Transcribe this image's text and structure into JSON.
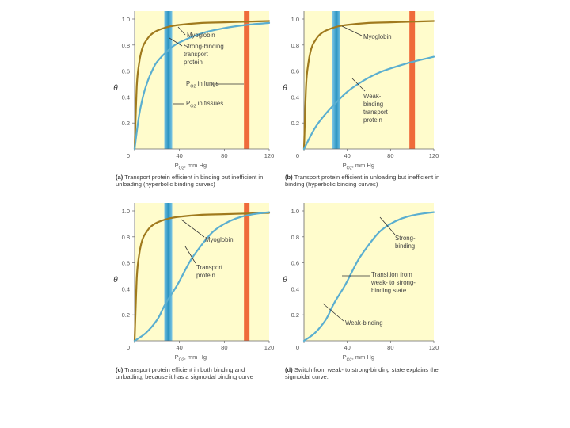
{
  "colors": {
    "background": "#fffccc",
    "myoglobin": "#a07a1e",
    "transport": "#5aaed0",
    "lungs_band": "#ef6a3a",
    "tissues_band": "#2a93c0",
    "axis": "#666666"
  },
  "chart_data": [
    {
      "id": "a",
      "type": "line",
      "xlim": [
        0,
        120
      ],
      "ylim": [
        0,
        1.0
      ],
      "xticks": [
        0,
        40,
        80,
        120
      ],
      "yticks": [
        0.2,
        0.4,
        0.6,
        0.8,
        1.0
      ],
      "xtick_labels": [
        "0",
        "40",
        "80",
        "120"
      ],
      "ytick_labels": [
        "0.2",
        "0.4",
        "0.6",
        "0.8",
        "1.0"
      ],
      "ylabel": "θ",
      "xlabel": "P_O2, mm Hg",
      "bands": [
        {
          "x": 30,
          "kind": "tissues"
        },
        {
          "x": 100,
          "kind": "lungs"
        }
      ],
      "series": [
        {
          "name": "Myoglobin",
          "color_key": "myoglobin",
          "x": [
            0,
            2,
            4,
            6,
            8,
            10,
            14,
            20,
            30,
            40,
            60,
            80,
            100,
            120
          ],
          "y": [
            0,
            0.49,
            0.66,
            0.75,
            0.8,
            0.83,
            0.875,
            0.91,
            0.94,
            0.955,
            0.97,
            0.975,
            0.98,
            0.985
          ]
        },
        {
          "name": "Strong-binding transport protein",
          "color_key": "transport",
          "x": [
            0,
            4,
            8,
            12,
            16,
            20,
            30,
            40,
            60,
            80,
            100,
            120
          ],
          "y": [
            0,
            0.26,
            0.42,
            0.53,
            0.61,
            0.67,
            0.76,
            0.82,
            0.89,
            0.93,
            0.955,
            0.97
          ]
        }
      ],
      "annotations": [
        "Myoglobin",
        "Strong-binding transport protein",
        "P_O2 in lungs",
        "P_O2 in tissues"
      ],
      "caption_letter": "(a)",
      "caption": "Transport protein efficient in binding but inefficient in unloading (hyperbolic binding curves)"
    },
    {
      "id": "b",
      "type": "line",
      "xlim": [
        0,
        120
      ],
      "ylim": [
        0,
        1.0
      ],
      "xticks": [
        0,
        40,
        80,
        120
      ],
      "yticks": [
        0.2,
        0.4,
        0.6,
        0.8,
        1.0
      ],
      "xtick_labels": [
        "0",
        "40",
        "80",
        "120"
      ],
      "ytick_labels": [
        "0.2",
        "0.4",
        "0.6",
        "0.8",
        "1.0"
      ],
      "ylabel": "θ",
      "xlabel": "P_O2, mm Hg",
      "bands": [
        {
          "x": 30,
          "kind": "tissues"
        },
        {
          "x": 100,
          "kind": "lungs"
        }
      ],
      "series": [
        {
          "name": "Myoglobin",
          "color_key": "myoglobin",
          "x": [
            0,
            2,
            4,
            6,
            8,
            10,
            14,
            20,
            30,
            40,
            60,
            80,
            100,
            120
          ],
          "y": [
            0,
            0.49,
            0.66,
            0.75,
            0.8,
            0.83,
            0.875,
            0.91,
            0.94,
            0.955,
            0.97,
            0.975,
            0.98,
            0.985
          ]
        },
        {
          "name": "Weak-binding transport protein",
          "color_key": "transport",
          "x": [
            0,
            10,
            20,
            30,
            40,
            50,
            60,
            70,
            80,
            100,
            120
          ],
          "y": [
            0,
            0.16,
            0.27,
            0.36,
            0.44,
            0.5,
            0.55,
            0.59,
            0.62,
            0.67,
            0.71
          ]
        }
      ],
      "annotations": [
        "Myoglobin",
        "Weak-binding transport protein"
      ],
      "caption_letter": "(b)",
      "caption": "Transport protein efficient in unloading but inefficient in binding (hyperbolic binding curves)"
    },
    {
      "id": "c",
      "type": "line",
      "xlim": [
        0,
        120
      ],
      "ylim": [
        0,
        1.0
      ],
      "xticks": [
        0,
        40,
        80,
        120
      ],
      "yticks": [
        0.2,
        0.4,
        0.6,
        0.8,
        1.0
      ],
      "xtick_labels": [
        "0",
        "40",
        "80",
        "120"
      ],
      "ytick_labels": [
        "0.2",
        "0.4",
        "0.6",
        "0.8",
        "1.0"
      ],
      "ylabel": "θ",
      "xlabel": "P_O2, mm Hg",
      "bands": [
        {
          "x": 30,
          "kind": "tissues"
        },
        {
          "x": 100,
          "kind": "lungs"
        }
      ],
      "series": [
        {
          "name": "Myoglobin",
          "color_key": "myoglobin",
          "x": [
            0,
            2,
            4,
            6,
            8,
            10,
            14,
            20,
            30,
            40,
            60,
            80,
            100,
            120
          ],
          "y": [
            0,
            0.49,
            0.66,
            0.75,
            0.8,
            0.83,
            0.875,
            0.91,
            0.94,
            0.955,
            0.97,
            0.975,
            0.98,
            0.985
          ]
        },
        {
          "name": "Transport protein",
          "color_key": "transport",
          "x": [
            0,
            10,
            20,
            26,
            30,
            36,
            40,
            50,
            60,
            70,
            80,
            90,
            100,
            110,
            120
          ],
          "y": [
            0,
            0.06,
            0.16,
            0.26,
            0.32,
            0.4,
            0.46,
            0.62,
            0.74,
            0.84,
            0.9,
            0.94,
            0.965,
            0.98,
            0.99
          ]
        }
      ],
      "annotations": [
        "Myoglobin",
        "Transport protein"
      ],
      "caption_letter": "(c)",
      "caption": "Transport protein efficient in both binding and unloading, because it has a sigmoidal binding curve"
    },
    {
      "id": "d",
      "type": "line",
      "xlim": [
        0,
        120
      ],
      "ylim": [
        0,
        1.0
      ],
      "xticks": [
        0,
        40,
        80,
        120
      ],
      "yticks": [
        0.2,
        0.4,
        0.6,
        0.8,
        1.0
      ],
      "xtick_labels": [
        "0",
        "40",
        "80",
        "120"
      ],
      "ytick_labels": [
        "0.2",
        "0.4",
        "0.6",
        "0.8",
        "1.0"
      ],
      "ylabel": "θ",
      "xlabel": "P_O2, mm Hg",
      "bands": [],
      "series": [
        {
          "name": "Transport protein",
          "color_key": "transport",
          "x": [
            0,
            10,
            20,
            26,
            30,
            36,
            40,
            50,
            60,
            70,
            80,
            90,
            100,
            110,
            120
          ],
          "y": [
            0,
            0.06,
            0.16,
            0.26,
            0.32,
            0.4,
            0.46,
            0.62,
            0.74,
            0.84,
            0.9,
            0.94,
            0.965,
            0.98,
            0.99
          ]
        }
      ],
      "annotations": [
        "Strong-binding",
        "Transition from weak- to strong-binding state",
        "Weak-binding"
      ],
      "caption_letter": "(d)",
      "caption": "Switch from weak- to strong-binding state explains the sigmoidal curve."
    }
  ]
}
